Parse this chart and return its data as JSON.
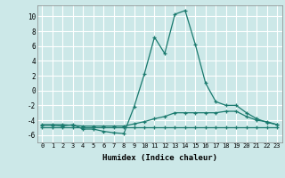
{
  "title": "",
  "xlabel": "Humidex (Indice chaleur)",
  "xlim": [
    -0.5,
    23.5
  ],
  "ylim": [
    -7,
    11.5
  ],
  "yticks": [
    -6,
    -4,
    -2,
    0,
    2,
    4,
    6,
    8,
    10
  ],
  "xticks": [
    0,
    1,
    2,
    3,
    4,
    5,
    6,
    7,
    8,
    9,
    10,
    11,
    12,
    13,
    14,
    15,
    16,
    17,
    18,
    19,
    20,
    21,
    22,
    23
  ],
  "bg_color": "#cce8e8",
  "line_color": "#1a7a6e",
  "grid_color": "#ffffff",
  "lines": [
    [
      0,
      -4.7,
      1,
      -4.7,
      2,
      -4.8,
      3,
      -4.6,
      4,
      -5.2,
      5,
      -5.2,
      6,
      -5.5,
      7,
      -5.7,
      8,
      -5.8,
      9,
      -2.2,
      10,
      2.2,
      11,
      7.2,
      12,
      5.0,
      13,
      10.3,
      14,
      10.8,
      15,
      6.2,
      16,
      1.0,
      17,
      -1.5,
      18,
      -2.0,
      19,
      -2.0,
      20,
      -3.0,
      21,
      -3.8,
      22,
      -4.3,
      23,
      -4.6
    ],
    [
      0,
      -4.6,
      1,
      -4.6,
      2,
      -4.6,
      3,
      -4.7,
      4,
      -4.8,
      5,
      -4.8,
      6,
      -4.8,
      7,
      -4.8,
      8,
      -4.8,
      9,
      -4.5,
      10,
      -4.2,
      11,
      -3.8,
      12,
      -3.5,
      13,
      -3.0,
      14,
      -3.0,
      15,
      -3.0,
      16,
      -3.0,
      17,
      -3.0,
      18,
      -2.8,
      19,
      -2.8,
      20,
      -3.5,
      21,
      -4.0,
      22,
      -4.2,
      23,
      -4.6
    ],
    [
      0,
      -5.0,
      1,
      -5.0,
      2,
      -5.0,
      3,
      -5.0,
      4,
      -5.0,
      5,
      -5.0,
      6,
      -5.0,
      7,
      -5.0,
      8,
      -5.0,
      9,
      -5.0,
      10,
      -5.0,
      11,
      -5.0,
      12,
      -5.0,
      13,
      -5.0,
      14,
      -5.0,
      15,
      -5.0,
      16,
      -5.0,
      17,
      -5.0,
      18,
      -5.0,
      19,
      -5.0,
      20,
      -5.0,
      21,
      -5.0,
      22,
      -5.0,
      23,
      -5.0
    ]
  ]
}
